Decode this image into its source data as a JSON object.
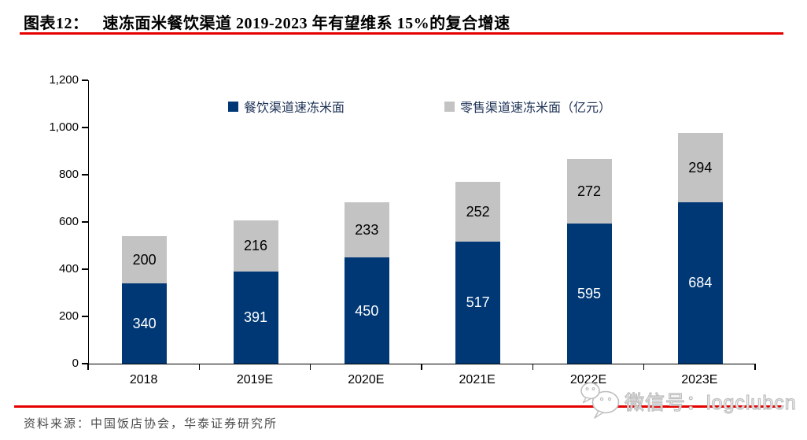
{
  "figure": {
    "label": "图表12：",
    "title": "速冻面米餐饮渠道 2019-2023 年有望维系 15%的复合增速"
  },
  "chart_data": {
    "type": "bar",
    "stacked": true,
    "title": "速冻面米餐饮渠道 2019-2023 年有望维系 15%的复合增速",
    "unit": "亿元",
    "categories": [
      "2018",
      "2019E",
      "2020E",
      "2021E",
      "2022E",
      "2023E"
    ],
    "series": [
      {
        "name": "餐饮渠道速冻米面",
        "color": "#003876",
        "label_color": "#ffffff",
        "values": [
          340,
          391,
          450,
          517,
          595,
          684
        ]
      },
      {
        "name": "零售渠道速冻米面（亿元）",
        "color": "#c3c3c3",
        "label_color": "#000000",
        "values": [
          200,
          216,
          233,
          252,
          272,
          294
        ]
      }
    ],
    "xlabel": "",
    "ylabel": "",
    "ylim": [
      0,
      1200
    ],
    "yticks": [
      0,
      200,
      400,
      600,
      800,
      1000,
      1200
    ],
    "ytick_labels": [
      "0",
      "200",
      "400",
      "600",
      "800",
      "1,000",
      "1,200"
    ],
    "grid": false,
    "legend_position": "top-inside"
  },
  "footer": {
    "source_note": "资料来源：中国饭店协会，华泰证券研究所"
  },
  "watermark": {
    "icon": "wechat-icon",
    "text": "微信号：logclubcn"
  },
  "colors": {
    "accent_red": "#e60000",
    "bar_blue": "#003876",
    "bar_gray": "#c3c3c3",
    "axis_black": "#000000",
    "legend_text": "#1f3357",
    "source_gray": "#4a4a4a",
    "watermark_gray": "#bdbdbd"
  }
}
